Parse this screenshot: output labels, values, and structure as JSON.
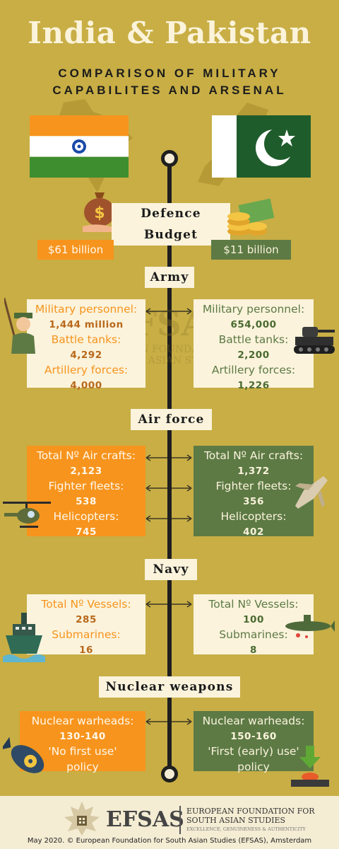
{
  "title": "India & Pakistan",
  "subtitle_line1": "COMPARISON OF MILITARY",
  "subtitle_line2": "CAPABILITES AND ARSENAL",
  "colors": {
    "background": "#c8ae45",
    "india_orange": "#f7941d",
    "pakistan_green": "#5d7a45",
    "cream": "#fbf3dc"
  },
  "sections": {
    "budget": {
      "label": "Defence Budget",
      "india": "$61 billion",
      "pakistan": "$11 billion"
    },
    "army": {
      "label": "Army",
      "india": {
        "personnel_label": "Military personnel:",
        "personnel": "1,444 million",
        "tanks_label": "Battle tanks:",
        "tanks": "4,292",
        "artillery_label": "Artillery forces:",
        "artillery": "4,000"
      },
      "pakistan": {
        "personnel_label": "Military personnel:",
        "personnel": "654,000",
        "tanks_label": "Battle tanks:",
        "tanks": "2,200",
        "artillery_label": "Artillery forces:",
        "artillery": "1,226"
      }
    },
    "air": {
      "label": "Air force",
      "india": {
        "aircraft_label": "Total Nº Air crafts:",
        "aircraft": "2,123",
        "fighters_label": "Fighter fleets:",
        "fighters": "538",
        "heli_label": "Helicopters:",
        "heli": "745"
      },
      "pakistan": {
        "aircraft_label": "Total Nº Air crafts:",
        "aircraft": "1,372",
        "fighters_label": "Fighter fleets:",
        "fighters": "356",
        "heli_label": "Helicopters:",
        "heli": "402"
      }
    },
    "navy": {
      "label": "Navy",
      "india": {
        "vessels_label": "Total Nº Vessels:",
        "vessels": "285",
        "subs_label": "Submarines:",
        "subs": "16"
      },
      "pakistan": {
        "vessels_label": "Total Nº Vessels:",
        "vessels": "100",
        "subs_label": "Submarines:",
        "subs": "8"
      }
    },
    "nuclear": {
      "label": "Nuclear weapons",
      "india": {
        "warheads_label": "Nuclear warheads:",
        "warheads": "130-140",
        "policy_line1": "'No first use'",
        "policy_line2": "policy"
      },
      "pakistan": {
        "warheads_label": "Nuclear warheads:",
        "warheads": "150-160",
        "policy_line1": "'First (early) use'",
        "policy_line2": "policy"
      }
    }
  },
  "watermark": {
    "name": "EFSAS",
    "line1": "EUROPEAN FOUNDATION FOR",
    "line2": "SOUTH ASIAN STUDIES"
  },
  "footer": {
    "logo_text": "EFSAS",
    "org_line1": "EUROPEAN FOUNDATION FOR",
    "org_line2": "SOUTH ASIAN STUDIES",
    "tagline": "EXCELLENCE, GENUINENESS & AUTHENTICITY",
    "credit": "May 2020. © European Foundation for South Asian Studies (EFSAS), Amsterdam"
  }
}
